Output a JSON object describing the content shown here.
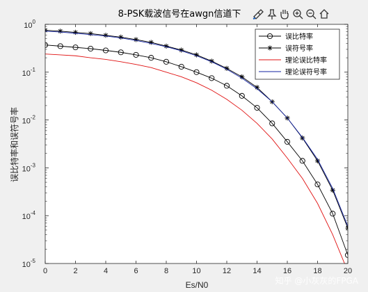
{
  "toolbar": {
    "icons": [
      "brush-icon",
      "pin-icon",
      "pan-hand-icon",
      "zoom-in-icon",
      "zoom-out-icon",
      "home-icon"
    ]
  },
  "watermark": "知乎 @小灰灰的FPGA",
  "colors": {
    "background": "#f0f0f0",
    "axes": "#ffffff",
    "measured": "#000000",
    "theory_ber": "#e01010",
    "theory_ser": "#1020a0"
  },
  "chart_data": {
    "type": "line",
    "title": "8-PSK载波信号在awgn信道下",
    "xlabel": "Es/N0",
    "ylabel": "误比特率和误符号率",
    "xlim": [
      0,
      20
    ],
    "ylim": [
      1e-05,
      1
    ],
    "yscale": "log",
    "grid": false,
    "legend_position": "top-right",
    "x_ticks": [
      "0",
      "2",
      "4",
      "6",
      "8",
      "10",
      "12",
      "14",
      "16",
      "18",
      "20"
    ],
    "y_ticks": [
      {
        "base": "10",
        "exp": "0"
      },
      {
        "base": "10",
        "exp": "-1"
      },
      {
        "base": "10",
        "exp": "-2"
      },
      {
        "base": "10",
        "exp": "-3"
      },
      {
        "base": "10",
        "exp": "-4"
      },
      {
        "base": "10",
        "exp": "-5"
      }
    ],
    "x": [
      0,
      1,
      2,
      3,
      4,
      5,
      6,
      7,
      8,
      9,
      10,
      11,
      12,
      13,
      14,
      15,
      16,
      17,
      18,
      19,
      20
    ],
    "series": [
      {
        "name": "误比特率",
        "color": "#000000",
        "marker": "circle",
        "values": [
          0.37,
          0.35,
          0.33,
          0.31,
          0.285,
          0.26,
          0.23,
          0.2,
          0.165,
          0.13,
          0.1,
          0.075,
          0.052,
          0.032,
          0.018,
          0.0085,
          0.0035,
          0.0014,
          0.00045,
          0.00011,
          1.5e-05
        ]
      },
      {
        "name": "误符号率",
        "color": "#000000",
        "marker": "asterisk",
        "values": [
          0.75,
          0.72,
          0.68,
          0.64,
          0.59,
          0.54,
          0.48,
          0.42,
          0.35,
          0.29,
          0.23,
          0.17,
          0.12,
          0.08,
          0.048,
          0.024,
          0.011,
          0.0042,
          0.0014,
          0.00034,
          5.5e-05
        ]
      },
      {
        "name": "理论误比特率",
        "color": "#e01010",
        "marker": "none",
        "values": [
          0.24,
          0.23,
          0.22,
          0.2,
          0.185,
          0.165,
          0.145,
          0.125,
          0.1,
          0.08,
          0.06,
          0.042,
          0.027,
          0.016,
          0.0085,
          0.004,
          0.0016,
          0.0006,
          0.00018,
          4e-05,
          6.8e-06
        ]
      },
      {
        "name": "理论误符号率",
        "color": "#1020a0",
        "marker": "none",
        "values": [
          0.72,
          0.69,
          0.65,
          0.61,
          0.57,
          0.52,
          0.46,
          0.4,
          0.34,
          0.28,
          0.22,
          0.165,
          0.115,
          0.075,
          0.045,
          0.024,
          0.011,
          0.0043,
          0.0015,
          0.00037,
          6e-05
        ]
      }
    ]
  }
}
